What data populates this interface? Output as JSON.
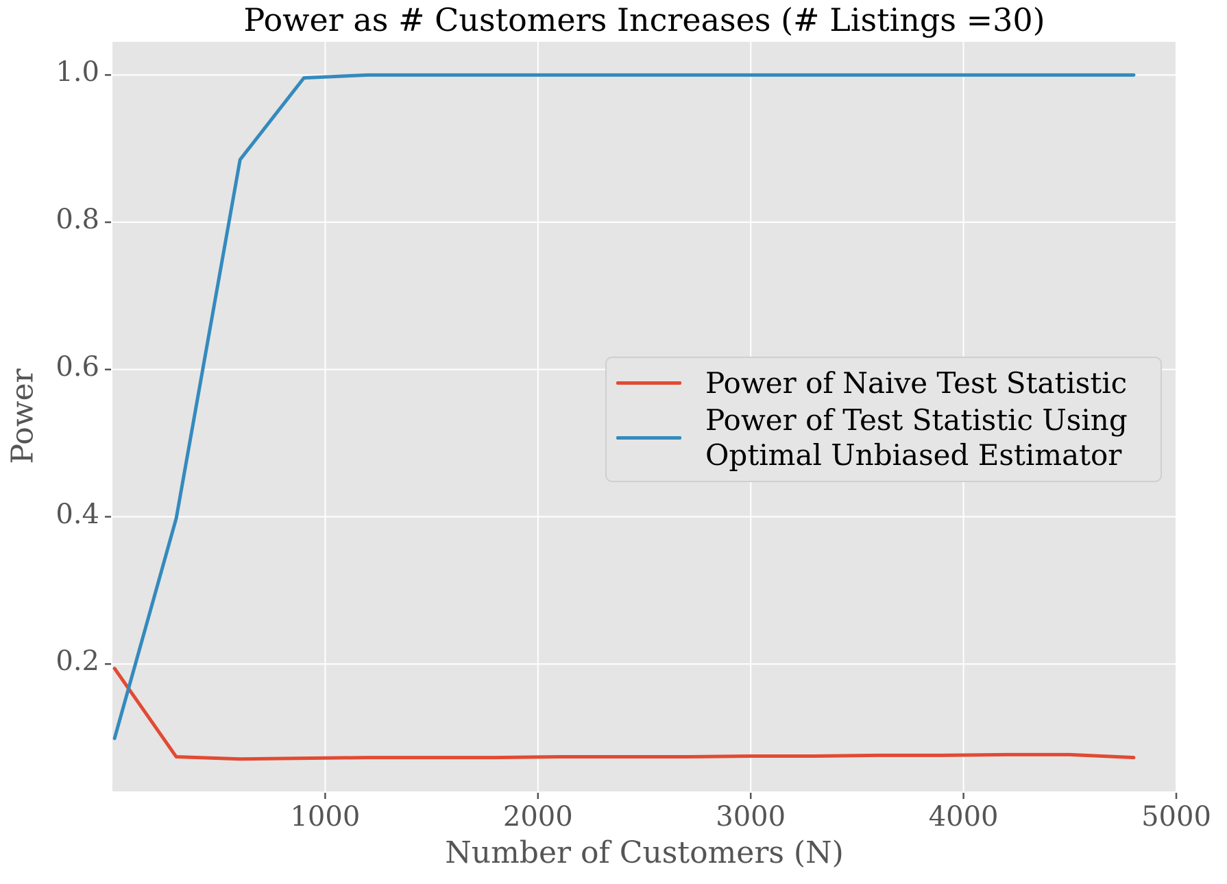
{
  "chart_data": {
    "type": "line",
    "title": "Power as # Customers Increases (# Listings =30)",
    "xlabel": "Number of Customers (N)",
    "ylabel": "Power",
    "x": [
      10,
      300,
      600,
      900,
      1200,
      1500,
      1800,
      2100,
      2400,
      2700,
      3000,
      3300,
      3600,
      3900,
      4200,
      4500,
      4800
    ],
    "series": [
      {
        "name": "Power of Naive Test Statistic",
        "name_lines": [
          "Power of Naive Test Statistic"
        ],
        "color": "#E24A33",
        "values": [
          0.194,
          0.074,
          0.071,
          0.072,
          0.073,
          0.073,
          0.073,
          0.074,
          0.074,
          0.074,
          0.075,
          0.075,
          0.076,
          0.076,
          0.077,
          0.077,
          0.073
        ]
      },
      {
        "name": "Power of Test Statistic Using Optimal Unbiased Estimator",
        "name_lines": [
          "Power of Test Statistic Using",
          "Optimal Unbiased Estimator"
        ],
        "color": "#348ABD",
        "values": [
          0.099,
          0.398,
          0.885,
          0.996,
          1.0,
          1.0,
          1.0,
          1.0,
          1.0,
          1.0,
          1.0,
          1.0,
          1.0,
          1.0,
          1.0,
          1.0,
          1.0
        ]
      }
    ],
    "xlim": [
      0,
      5000
    ],
    "ylim": [
      0.027,
      1.045
    ],
    "x_ticks": [
      1000,
      2000,
      3000,
      4000,
      5000
    ],
    "x_tick_labels": [
      "1000",
      "2000",
      "3000",
      "4000",
      "5000"
    ],
    "y_ticks": [
      0.2,
      0.4,
      0.6,
      0.8,
      1.0
    ],
    "y_tick_labels": [
      "0.2",
      "0.4",
      "0.6",
      "0.8",
      "1.0"
    ],
    "grid": true,
    "legend_position": "center right"
  },
  "style": {
    "figure_bg": "#FFFFFF",
    "axes_bg": "#E5E5E5",
    "grid_color": "#FFFFFF",
    "tick_color": "#555555",
    "label_color": "#555555",
    "title_color": "#000000",
    "legend_bg": "#E5E5E5",
    "legend_border": "#CFCFCF"
  }
}
